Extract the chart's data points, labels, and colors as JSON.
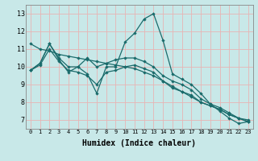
{
  "xlabel": "Humidex (Indice chaleur)",
  "xlim": [
    -0.5,
    23.5
  ],
  "ylim": [
    6.5,
    13.5
  ],
  "xticks": [
    0,
    1,
    2,
    3,
    4,
    5,
    6,
    7,
    8,
    9,
    10,
    11,
    12,
    13,
    14,
    15,
    16,
    17,
    18,
    19,
    20,
    21,
    22,
    23
  ],
  "yticks": [
    7,
    8,
    9,
    10,
    11,
    12,
    13
  ],
  "bg_color": "#c8e8e8",
  "grid_color": "#e8b4b4",
  "line_color": "#1a6b6b",
  "lines": [
    [
      9.8,
      10.2,
      11.3,
      10.4,
      9.7,
      10.0,
      9.6,
      8.5,
      10.0,
      10.0,
      11.4,
      11.9,
      12.7,
      13.0,
      11.5,
      9.6,
      9.3,
      9.0,
      8.5,
      7.9,
      7.5,
      7.1,
      6.8,
      6.9
    ],
    [
      11.3,
      11.0,
      10.9,
      10.7,
      10.6,
      10.5,
      10.4,
      10.3,
      10.2,
      10.1,
      10.0,
      9.9,
      9.7,
      9.5,
      9.2,
      8.9,
      8.6,
      8.4,
      8.0,
      7.8,
      7.6,
      7.3,
      7.1,
      6.9
    ],
    [
      9.8,
      10.2,
      11.3,
      10.5,
      10.0,
      10.0,
      10.5,
      10.0,
      10.2,
      10.4,
      10.5,
      10.5,
      10.3,
      10.0,
      9.5,
      9.2,
      9.0,
      8.7,
      8.2,
      7.9,
      7.7,
      7.4,
      7.1,
      7.0
    ],
    [
      9.8,
      10.1,
      11.0,
      10.3,
      9.8,
      9.7,
      9.5,
      9.0,
      9.7,
      9.8,
      10.0,
      10.1,
      9.9,
      9.7,
      9.2,
      8.8,
      8.6,
      8.3,
      8.0,
      7.8,
      7.6,
      7.3,
      7.1,
      6.9
    ]
  ]
}
